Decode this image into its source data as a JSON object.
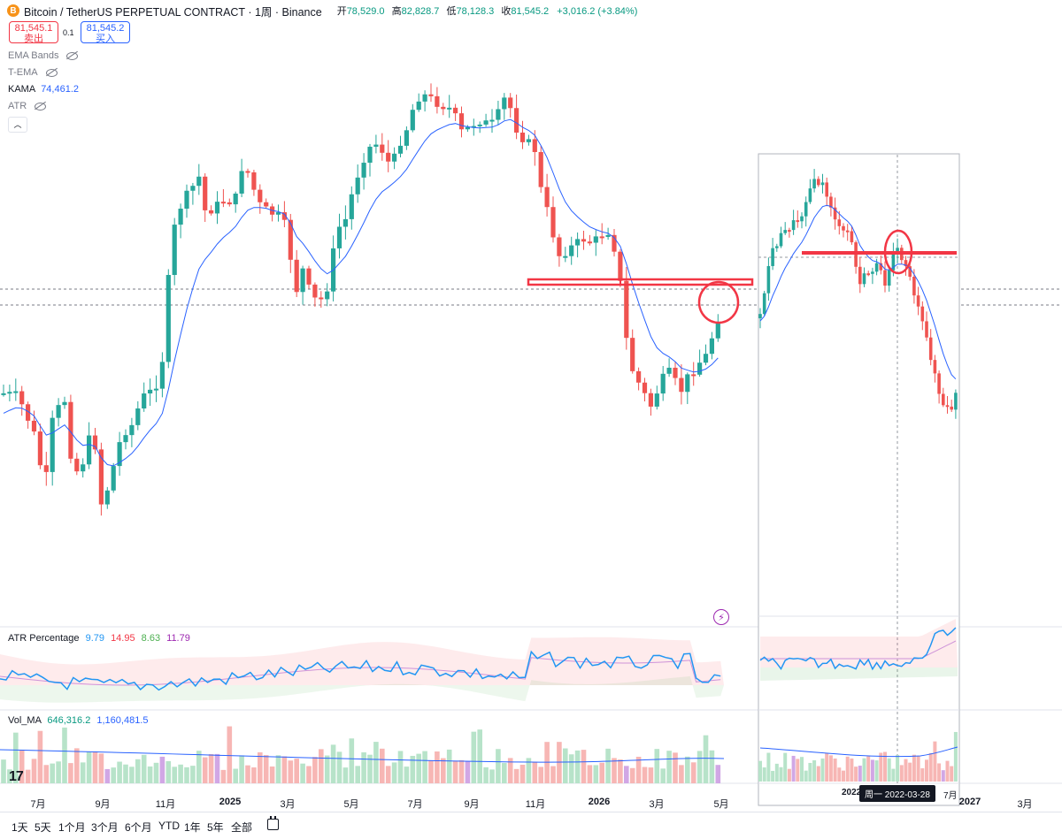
{
  "header": {
    "title": "Bitcoin / TetherUS PERPETUAL CONTRACT · 1周 · Binance",
    "logo_letter": "B",
    "ohlc": {
      "open_label": "开",
      "open": "78,529.0",
      "high_label": "高",
      "high": "82,828.7",
      "low_label": "低",
      "low": "78,128.3",
      "close_label": "收",
      "close": "81,545.2",
      "change": "+3,016.2 (+3.84%)"
    }
  },
  "trade": {
    "sell_price": "81,545.1",
    "sell_label": "卖出",
    "spread": "0.1",
    "buy_price": "81,545.2",
    "buy_label": "买入"
  },
  "indicators": [
    {
      "name": "EMA Bands",
      "hidden": true
    },
    {
      "name": "T-EMA",
      "hidden": true
    },
    {
      "name": "KAMA",
      "value": "74,461.2",
      "hidden": false
    },
    {
      "name": "ATR",
      "hidden": true
    }
  ],
  "atr_pane": {
    "label": "ATR Percentage",
    "values": [
      {
        "v": "9.79",
        "color": "#2196f3"
      },
      {
        "v": "14.95",
        "color": "#f23645"
      },
      {
        "v": "8.63",
        "color": "#4caf50"
      },
      {
        "v": "11.79",
        "color": "#9c27b0"
      }
    ]
  },
  "vol_pane": {
    "label": "Vol_MA",
    "values": [
      {
        "v": "646,316.2",
        "color": "#089981"
      },
      {
        "v": "1,160,481.5",
        "color": "#2962ff"
      }
    ]
  },
  "x_axis": [
    "7月",
    "9月",
    "11月",
    "2025",
    "3月",
    "5月",
    "7月",
    "9月",
    "11月",
    "2026",
    "3月",
    "5月",
    "2027",
    "3月"
  ],
  "inset": {
    "crosshair_label": "周一  2022-03-28",
    "partial_label": "2022",
    "right_label": "7月"
  },
  "timeframes": [
    "1天",
    "5天",
    "1个月",
    "3个月",
    "6个月",
    "YTD",
    "1年",
    "5年",
    "全部"
  ],
  "tv_logo": "17",
  "colors": {
    "up": "#26a69a",
    "down": "#ef5350",
    "kama": "#2962ff",
    "annotation": "#f23645"
  },
  "chart_data": {
    "type": "candlestick",
    "title": "Bitcoin / TetherUS PERPETUAL CONTRACT · 1周 · Binance",
    "interval": "1周",
    "last": {
      "open": 78529.0,
      "high": 82828.7,
      "low": 78128.3,
      "close": 81545.2,
      "change": 3016.2,
      "change_pct": 3.84
    },
    "kama_last": 74461.2,
    "x_ticks": [
      "7月",
      "9月",
      "11月",
      "2025",
      "3月",
      "5月",
      "7月",
      "9月",
      "11月",
      "2026",
      "3月",
      "5月"
    ],
    "atr_pct_last": [
      9.79,
      14.95,
      8.63,
      11.79
    ],
    "vol_last": 646316.2,
    "vol_ma_last": 1160481.5
  }
}
